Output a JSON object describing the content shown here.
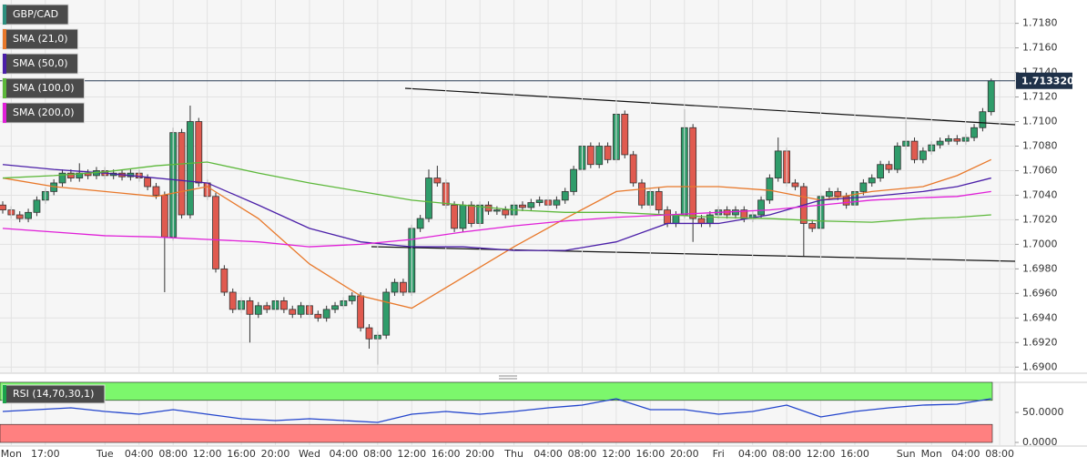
{
  "chart_data": [
    {
      "type": "candlestick",
      "categories": [
        null,
        "Mon",
        null,
        null,
        null,
        "17:00",
        null,
        null,
        null,
        null,
        null,
        null,
        "Tue",
        null,
        null,
        null,
        "04:00",
        null,
        null,
        null,
        "08:00",
        null,
        null,
        null,
        "12:00",
        null,
        null,
        null,
        "16:00",
        null,
        null,
        null,
        "20:00",
        null,
        null,
        null,
        "Wed",
        null,
        null,
        null,
        "04:00",
        null,
        null,
        null,
        "08:00",
        null,
        null,
        null,
        "12:00",
        null,
        null,
        null,
        "16:00",
        null,
        null,
        null,
        "20:00",
        null,
        null,
        null,
        "Thu",
        null,
        null,
        null,
        "04:00",
        null,
        null,
        null,
        "08:00",
        null,
        null,
        null,
        "12:00",
        null,
        null,
        null,
        "16:00",
        null,
        null,
        null,
        "20:00",
        null,
        null,
        null,
        "Fri",
        null,
        null,
        null,
        "04:00",
        null,
        null,
        null,
        "08:00",
        null,
        null,
        null,
        "12:00",
        null,
        null,
        null,
        "16:00",
        null,
        null,
        null,
        null,
        null,
        "Sun",
        null,
        null,
        "Mon",
        null,
        null,
        null,
        "04:00",
        null,
        null,
        null,
        "08:00"
      ],
      "series": [
        {
          "name": "GBP/CAD",
          "color": "#2e8f7e",
          "open": [
            1.7032,
            1.7028,
            1.7024,
            1.7021,
            1.7026,
            1.7036,
            1.7043,
            1.705,
            1.7058,
            1.7054,
            1.7058,
            1.7056,
            1.706,
            1.7056,
            1.7058,
            1.7055,
            1.7058,
            1.7054,
            1.7047,
            1.704,
            1.7006,
            1.7091,
            1.7024,
            1.71,
            1.705,
            1.7039,
            1.698,
            1.6961,
            1.6947,
            1.6954,
            1.6943,
            1.695,
            1.6947,
            1.6954,
            1.6947,
            1.6943,
            1.695,
            1.6943,
            1.694,
            1.6947,
            1.695,
            1.6954,
            1.6958,
            1.6932,
            1.6923,
            1.6926,
            1.6961,
            1.6969,
            1.6961,
            1.7013,
            1.7021,
            1.7054,
            1.705,
            1.7032,
            1.7013,
            1.7032,
            1.7017,
            1.7032,
            1.7027,
            1.7028,
            1.7024,
            1.7032,
            1.703,
            1.7034,
            1.7036,
            1.7032,
            1.7036,
            1.7043,
            1.7061,
            1.708,
            1.7065,
            1.708,
            1.7069,
            1.7106,
            1.7073,
            1.705,
            1.7032,
            1.7043,
            1.7028,
            1.7017,
            1.7024,
            1.7095,
            1.7021,
            1.7017,
            1.7024,
            1.7028,
            1.7024,
            1.7028,
            1.7021,
            1.7024,
            1.7036,
            1.7054,
            1.7076,
            1.705,
            1.7047,
            1.7017,
            1.7013,
            1.7039,
            1.7043,
            1.7039,
            1.7032,
            1.7043,
            1.705,
            1.7054,
            1.7065,
            1.7061,
            1.708,
            1.7084,
            1.7069,
            1.7076,
            1.7081,
            1.7084,
            1.7086,
            1.7084,
            1.7087,
            1.7095,
            1.7108,
            null
          ],
          "high": [
            1.7035,
            1.7031,
            1.7027,
            1.7029,
            1.7039,
            1.7046,
            1.7053,
            1.7061,
            1.7061,
            1.7066,
            1.7061,
            1.7063,
            1.7063,
            1.7061,
            1.7061,
            1.7061,
            1.7061,
            1.7057,
            1.705,
            1.7043,
            1.7095,
            1.7094,
            1.7113,
            1.7103,
            1.7053,
            1.7042,
            1.6983,
            1.6964,
            1.6957,
            1.6957,
            1.6953,
            1.6953,
            1.6957,
            1.6957,
            1.695,
            1.6953,
            1.6953,
            1.6946,
            1.695,
            1.6953,
            1.6957,
            1.6961,
            1.6961,
            1.6935,
            1.6929,
            1.6964,
            1.6972,
            1.6972,
            1.7016,
            1.7024,
            1.7061,
            1.7064,
            1.7053,
            1.7035,
            1.7035,
            1.7035,
            1.7035,
            1.7035,
            1.7031,
            1.7031,
            1.7035,
            1.7035,
            1.7037,
            1.7039,
            1.7039,
            1.7039,
            1.7046,
            1.7064,
            1.7083,
            1.7083,
            1.7083,
            1.7083,
            1.7115,
            1.7109,
            1.7076,
            1.7053,
            1.7046,
            1.7046,
            1.7031,
            1.7027,
            1.711,
            1.7098,
            1.7024,
            1.7027,
            1.7031,
            1.7031,
            1.7031,
            1.7031,
            1.7027,
            1.7039,
            1.7057,
            1.7087,
            1.7079,
            1.7053,
            1.705,
            1.702,
            1.7042,
            1.7046,
            1.7046,
            1.7042,
            1.7046,
            1.7053,
            1.7057,
            1.7068,
            1.7068,
            1.7083,
            1.7101,
            1.7087,
            1.7079,
            1.7084,
            1.7087,
            1.7089,
            1.7089,
            1.709,
            1.7098,
            1.7111,
            1.7135,
            null
          ],
          "low": [
            1.7025,
            1.7021,
            1.7018,
            1.7018,
            1.7023,
            1.7033,
            1.704,
            1.7047,
            1.7051,
            1.7051,
            1.7053,
            1.7053,
            1.7053,
            1.7053,
            1.7052,
            1.7052,
            1.7051,
            1.7044,
            1.7037,
            1.6961,
            1.7003,
            1.7021,
            1.7021,
            1.7047,
            1.7036,
            1.6977,
            1.6958,
            1.6944,
            1.6944,
            1.692,
            1.694,
            1.6944,
            1.6944,
            1.6944,
            1.694,
            1.694,
            1.694,
            1.6937,
            1.6937,
            1.6944,
            1.6947,
            1.6951,
            1.6929,
            1.6915,
            1.6902,
            1.6923,
            1.6958,
            1.6958,
            1.6958,
            1.701,
            1.7018,
            1.7047,
            1.7029,
            1.701,
            1.701,
            1.7014,
            1.7014,
            1.7024,
            1.7024,
            1.7021,
            1.7021,
            1.7027,
            1.7027,
            1.7031,
            1.7029,
            1.7029,
            1.7033,
            1.704,
            1.7058,
            1.7062,
            1.7062,
            1.7066,
            1.7066,
            1.707,
            1.7047,
            1.7029,
            1.7029,
            1.7025,
            1.7014,
            1.7014,
            1.7021,
            1.7002,
            1.7014,
            1.7014,
            1.7021,
            1.7021,
            1.7021,
            1.7018,
            1.7018,
            1.7021,
            1.7033,
            1.7051,
            1.7047,
            1.7044,
            1.699,
            1.701,
            1.6992,
            1.7036,
            1.7036,
            1.7029,
            1.7029,
            1.704,
            1.7047,
            1.7051,
            1.7058,
            1.7058,
            1.7077,
            1.7066,
            1.7066,
            1.7073,
            1.7078,
            1.7081,
            1.7081,
            1.7081,
            1.7084,
            1.7092,
            1.7105,
            null
          ],
          "close": [
            1.7028,
            1.7024,
            1.7021,
            1.7026,
            1.7036,
            1.7043,
            1.705,
            1.7058,
            1.7054,
            1.7058,
            1.7056,
            1.706,
            1.7056,
            1.7058,
            1.7055,
            1.7058,
            1.7054,
            1.7047,
            1.704,
            1.7006,
            1.7091,
            1.7024,
            1.71,
            1.705,
            1.7039,
            1.698,
            1.6961,
            1.6947,
            1.6954,
            1.6943,
            1.695,
            1.6947,
            1.6954,
            1.6947,
            1.6943,
            1.695,
            1.6943,
            1.694,
            1.6947,
            1.695,
            1.6954,
            1.6958,
            1.6932,
            1.6923,
            1.6926,
            1.6961,
            1.6969,
            1.6961,
            1.7013,
            1.7021,
            1.7054,
            1.705,
            1.7032,
            1.7013,
            1.7032,
            1.7017,
            1.7032,
            1.7027,
            1.7028,
            1.7024,
            1.7032,
            1.703,
            1.7034,
            1.7036,
            1.7032,
            1.7036,
            1.7043,
            1.7061,
            1.708,
            1.7065,
            1.708,
            1.7069,
            1.7106,
            1.7073,
            1.705,
            1.7032,
            1.7043,
            1.7028,
            1.7017,
            1.7024,
            1.7095,
            1.7021,
            1.7017,
            1.7024,
            1.7028,
            1.7024,
            1.7028,
            1.7021,
            1.7024,
            1.7036,
            1.7054,
            1.7076,
            1.705,
            1.7047,
            1.7017,
            1.7013,
            1.7039,
            1.7043,
            1.7039,
            1.7032,
            1.7043,
            1.705,
            1.7054,
            1.7065,
            1.7061,
            1.708,
            1.7084,
            1.7069,
            1.7076,
            1.7081,
            1.7084,
            1.7086,
            1.7084,
            1.7087,
            1.7095,
            1.7108,
            1.71332,
            null
          ]
        },
        {
          "name": "SMA (21,0)",
          "color": "#e8782a",
          "x": [
            0,
            6,
            12,
            18,
            24,
            30,
            36,
            42,
            48,
            54,
            60,
            66,
            72,
            78,
            84,
            90,
            96,
            102,
            108,
            112,
            116
          ],
          "values": [
            1.7054,
            1.7047,
            1.7043,
            1.7039,
            1.7047,
            1.7021,
            1.6984,
            1.6958,
            1.6948,
            1.6973,
            1.6998,
            1.7021,
            1.7043,
            1.7047,
            1.7047,
            1.7044,
            1.7036,
            1.7043,
            1.7047,
            1.7056,
            1.7069
          ]
        },
        {
          "name": "SMA (50,0)",
          "color": "#4b1fa8",
          "x": [
            0,
            6,
            12,
            18,
            24,
            30,
            36,
            42,
            48,
            54,
            60,
            66,
            72,
            78,
            84,
            90,
            96,
            102,
            108,
            112,
            116
          ],
          "values": [
            1.7065,
            1.7061,
            1.7058,
            1.7054,
            1.705,
            1.7032,
            1.7013,
            1.7002,
            1.6998,
            1.6998,
            1.6995,
            1.6995,
            1.7002,
            1.7017,
            1.7017,
            1.7024,
            1.7036,
            1.7039,
            1.7043,
            1.7047,
            1.7054
          ]
        },
        {
          "name": "SMA (100,0)",
          "color": "#5cb83a",
          "x": [
            0,
            6,
            12,
            18,
            24,
            30,
            36,
            42,
            48,
            54,
            60,
            66,
            72,
            78,
            84,
            90,
            96,
            102,
            108,
            112,
            116
          ],
          "values": [
            1.7054,
            1.7056,
            1.7059,
            1.7064,
            1.7067,
            1.7058,
            1.705,
            1.7043,
            1.7036,
            1.7032,
            1.7028,
            1.7026,
            1.7026,
            1.7024,
            1.7022,
            1.7021,
            1.7019,
            1.7018,
            1.7021,
            1.7022,
            1.7024
          ]
        },
        {
          "name": "SMA (200,0)",
          "color": "#e020d8",
          "x": [
            0,
            6,
            12,
            18,
            24,
            30,
            36,
            42,
            48,
            54,
            60,
            66,
            72,
            78,
            84,
            90,
            96,
            102,
            108,
            112,
            116
          ],
          "values": [
            1.7013,
            1.701,
            1.7007,
            1.7006,
            1.7004,
            1.7002,
            1.6998,
            1.7,
            1.7004,
            1.701,
            1.7015,
            1.7019,
            1.7022,
            1.7024,
            1.7026,
            1.7028,
            1.7032,
            1.7036,
            1.7038,
            1.7039,
            1.7043
          ]
        }
      ],
      "up_color": "#2f9c6a",
      "down_color": "#e05a4f",
      "current_price": {
        "value": 1.71332,
        "label": "1.713320"
      },
      "ylim": [
        1.6895,
        1.7199
      ],
      "yticks": [
        {
          "value": 1.69,
          "label": "1.6900"
        },
        {
          "value": 1.692,
          "label": "1.6920"
        },
        {
          "value": 1.694,
          "label": "1.6940"
        },
        {
          "value": 1.696,
          "label": "1.6960"
        },
        {
          "value": 1.698,
          "label": "1.6980"
        },
        {
          "value": 1.7,
          "label": "1.7000"
        },
        {
          "value": 1.702,
          "label": "1.7020"
        },
        {
          "value": 1.704,
          "label": "1.7040"
        },
        {
          "value": 1.706,
          "label": "1.7060"
        },
        {
          "value": 1.708,
          "label": "1.7080"
        },
        {
          "value": 1.71,
          "label": "1.7100"
        },
        {
          "value": 1.712,
          "label": "1.7120"
        },
        {
          "value": 1.714,
          "label": "1.7140"
        },
        {
          "value": 1.716,
          "label": "1.7160"
        },
        {
          "value": 1.718,
          "label": "1.7180"
        }
      ],
      "grid": true
    },
    {
      "type": "line",
      "series": [
        {
          "name": "RSI (14,70,30,1)",
          "color": "#2244cc",
          "x": [
            0,
            4,
            8,
            12,
            16,
            20,
            24,
            28,
            32,
            36,
            40,
            44,
            48,
            52,
            56,
            60,
            64,
            68,
            72,
            76,
            80,
            84,
            88,
            92,
            96,
            100,
            104,
            108,
            112,
            116
          ],
          "values": [
            51.5,
            54.5,
            57.6,
            51.5,
            47,
            54.5,
            47,
            39.4,
            36.4,
            39.4,
            36.4,
            33.3,
            47,
            51.5,
            47,
            51.5,
            57.6,
            62.1,
            72.7,
            54.5,
            54.5,
            47,
            51.5,
            62.1,
            42.4,
            51.5,
            57.6,
            62.1,
            63.6,
            72.7
          ]
        }
      ],
      "bands": [
        {
          "from": 70,
          "to": 100,
          "color": "#7cf76c"
        },
        {
          "from": 0,
          "to": 30,
          "color": "#ff8080"
        }
      ],
      "ylim": [
        0,
        100
      ],
      "yticks": [
        {
          "value": 50,
          "label": "50.0000"
        },
        {
          "value": 0,
          "label": "0.0000"
        }
      ]
    }
  ]
}
